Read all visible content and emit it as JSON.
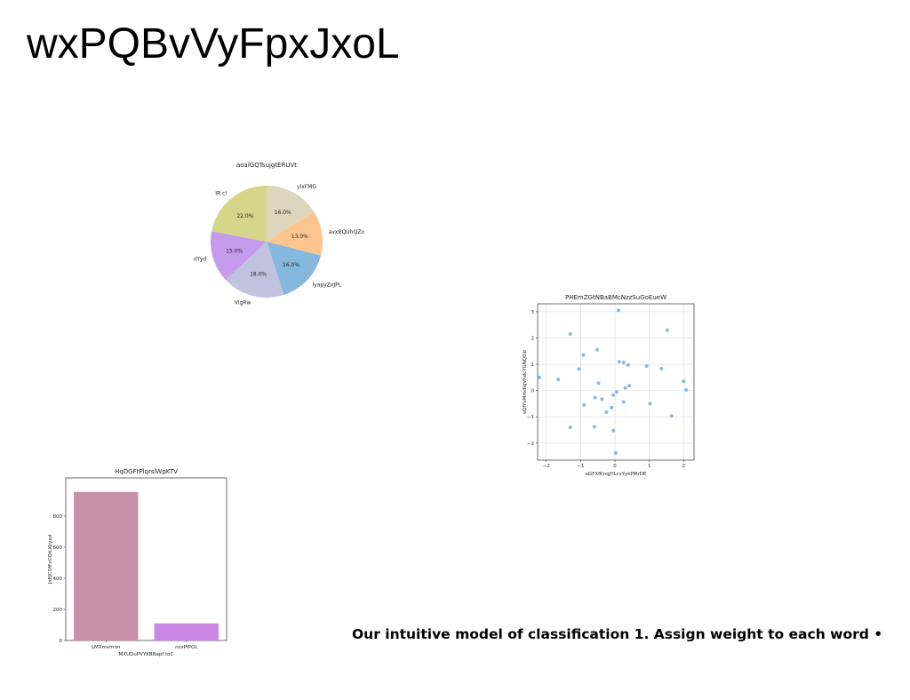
{
  "slide": {
    "title": "wxPQBvVyFpxJxoL",
    "caption": "Our intuitive model of classification 1. Assign weight to each word •"
  },
  "chart_data": [
    {
      "type": "pie",
      "title": "aoalGQTsujgtERUVt",
      "labels": [
        "ylxFMG",
        "avxBQUhQZo",
        "lyapyZxJPL",
        "VlgRw",
        "bIYyd",
        "IR cl"
      ],
      "values": [
        16.0,
        13.0,
        16.0,
        18.0,
        15.0,
        22.0
      ],
      "value_labels": [
        "16.0%",
        "13.0%",
        "16.0%",
        "18.0%",
        "15.0%",
        "22.0%"
      ],
      "colors": [
        "#ddd6bc",
        "#fdc58e",
        "#86b8dd",
        "#bfc3e0",
        "#c59bec",
        "#d6d68a"
      ],
      "start_angle_deg": 90,
      "direction": "clockwise"
    },
    {
      "type": "scatter",
      "title": "PHEmZGtNBaBMcNzzSuGoEueW",
      "xlabel": "oGFXfKnqJYLcsYykPMrDE",
      "ylabel": "sQfYvMmdlqVhdcYGNQDb",
      "xlim": [
        -2.25,
        2.3
      ],
      "ylim": [
        -2.65,
        3.3
      ],
      "xticks": [
        -2,
        -1,
        0,
        1,
        2
      ],
      "yticks": [
        -2,
        -1,
        0,
        1,
        2,
        3
      ],
      "grid": true,
      "color": "#7aa9d8",
      "points": [
        [
          -2.2,
          0.5
        ],
        [
          -1.65,
          0.42
        ],
        [
          -1.3,
          2.15
        ],
        [
          -1.3,
          -1.4
        ],
        [
          -1.05,
          0.82
        ],
        [
          -0.92,
          1.35
        ],
        [
          -0.9,
          -0.55
        ],
        [
          -0.6,
          -1.38
        ],
        [
          -0.58,
          -0.27
        ],
        [
          -0.52,
          1.55
        ],
        [
          -0.48,
          0.28
        ],
        [
          -0.38,
          -0.33
        ],
        [
          -0.25,
          -0.82
        ],
        [
          -0.1,
          -0.65
        ],
        [
          -0.05,
          -1.52
        ],
        [
          -0.05,
          -0.17
        ],
        [
          0.02,
          -2.38
        ],
        [
          0.05,
          -0.05
        ],
        [
          0.1,
          3.05
        ],
        [
          0.12,
          1.1
        ],
        [
          0.25,
          1.07
        ],
        [
          0.25,
          -0.43
        ],
        [
          0.3,
          0.1
        ],
        [
          0.38,
          0.97
        ],
        [
          0.42,
          0.18
        ],
        [
          0.92,
          0.93
        ],
        [
          1.02,
          -0.5
        ],
        [
          1.35,
          0.83
        ],
        [
          1.52,
          2.3
        ],
        [
          1.65,
          -0.97
        ],
        [
          2.0,
          0.35
        ],
        [
          2.07,
          0.02
        ]
      ]
    },
    {
      "type": "bar",
      "title": "HqDGFtPlqrslWpKTV",
      "xlabel": "MXUDuPVYKBBapf toC",
      "ylabel": "JxEJCSfFxCQiLXkyxd",
      "categories": [
        "LMXmvmnn",
        "nczPfPQL"
      ],
      "values": [
        955,
        110
      ],
      "colors": [
        "#c78ea8",
        "#cc86e6"
      ],
      "ylim": [
        0,
        1045
      ],
      "yticks": [
        0,
        200,
        400,
        600,
        800
      ]
    }
  ]
}
